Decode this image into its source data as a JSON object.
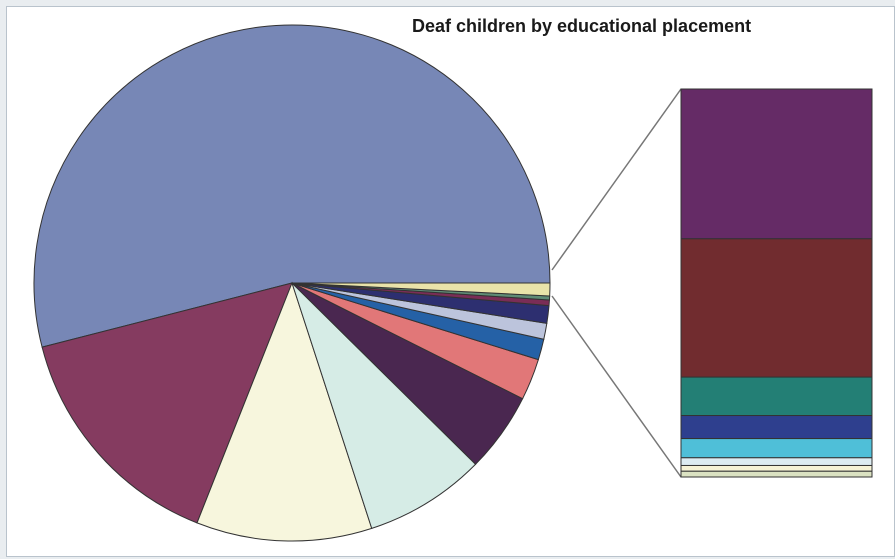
{
  "chart_data": {
    "type": "pie",
    "title": "Deaf children by educational placement",
    "slices": [
      {
        "value": 54.0,
        "color": "#7787b6"
      },
      {
        "value": 15.0,
        "color": "#853b60"
      },
      {
        "value": 11.0,
        "color": "#f7f6dd"
      },
      {
        "value": 7.6,
        "color": "#d6ece6"
      },
      {
        "value": 5.0,
        "color": "#4a2750"
      },
      {
        "value": 2.6,
        "color": "#e17778"
      },
      {
        "value": 1.3,
        "color": "#2561a6"
      },
      {
        "value": 1.0,
        "color": "#bcc4dc"
      },
      {
        "value": 1.1,
        "color": "#2d2f70"
      },
      {
        "value": 0.35,
        "color": "#7a2d56"
      },
      {
        "value": 0.25,
        "color": "#5f8b75"
      },
      {
        "value": 0.8,
        "color": "#e9e3a9"
      }
    ],
    "breakout": {
      "from_slice": 11,
      "segments": [
        {
          "value": 39,
          "color": "#652b66"
        },
        {
          "value": 36,
          "color": "#712c2f"
        },
        {
          "value": 10,
          "color": "#237f75"
        },
        {
          "value": 6,
          "color": "#2e3f8e"
        },
        {
          "value": 5,
          "color": "#4fbfd8"
        },
        {
          "value": 2,
          "color": "#ddecf2"
        },
        {
          "value": 1.5,
          "color": "#f6f3d6"
        },
        {
          "value": 1.5,
          "color": "#dbe2c2"
        }
      ]
    }
  }
}
